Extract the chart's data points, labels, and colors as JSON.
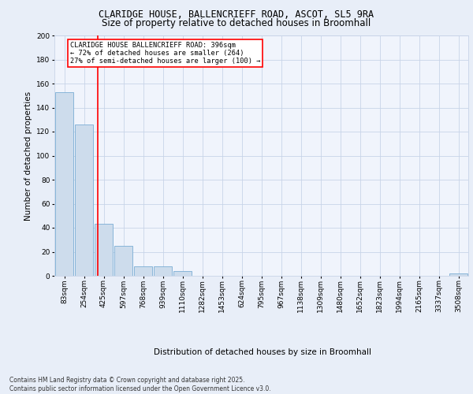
{
  "title1": "CLARIDGE HOUSE, BALLENCRIEFF ROAD, ASCOT, SL5 9RA",
  "title2": "Size of property relative to detached houses in Broomhall",
  "xlabel": "Distribution of detached houses by size in Broomhall",
  "ylabel": "Number of detached properties",
  "bin_labels": [
    "83sqm",
    "254sqm",
    "425sqm",
    "597sqm",
    "768sqm",
    "939sqm",
    "1110sqm",
    "1282sqm",
    "1453sqm",
    "624sqm",
    "795sqm",
    "967sqm",
    "1138sqm",
    "1309sqm",
    "1480sqm",
    "1652sqm",
    "1823sqm",
    "1994sqm",
    "2165sqm",
    "3337sqm",
    "3508sqm"
  ],
  "bar_heights": [
    153,
    126,
    43,
    25,
    8,
    8,
    4,
    0,
    0,
    0,
    0,
    0,
    0,
    0,
    0,
    0,
    0,
    0,
    0,
    0,
    2
  ],
  "bar_color": "#cddcec",
  "bar_edgecolor": "#7aadd4",
  "vline_x": 1.7,
  "vline_color": "red",
  "annotation_text": "CLARIDGE HOUSE BALLENCRIEFF ROAD: 396sqm\n← 72% of detached houses are smaller (264)\n27% of semi-detached houses are larger (100) →",
  "annotation_box_color": "white",
  "annotation_box_edgecolor": "red",
  "ylim": [
    0,
    200
  ],
  "yticks": [
    0,
    20,
    40,
    60,
    80,
    100,
    120,
    140,
    160,
    180,
    200
  ],
  "footer": "Contains HM Land Registry data © Crown copyright and database right 2025.\nContains public sector information licensed under the Open Government Licence v3.0.",
  "bg_color": "#e8eef8",
  "plot_bg_color": "#f0f4fc",
  "grid_color": "#c8d4e8",
  "title1_fontsize": 8.5,
  "title2_fontsize": 8.5,
  "ylabel_fontsize": 7.5,
  "xlabel_fontsize": 7.5,
  "tick_fontsize": 6.5,
  "footer_fontsize": 5.5
}
